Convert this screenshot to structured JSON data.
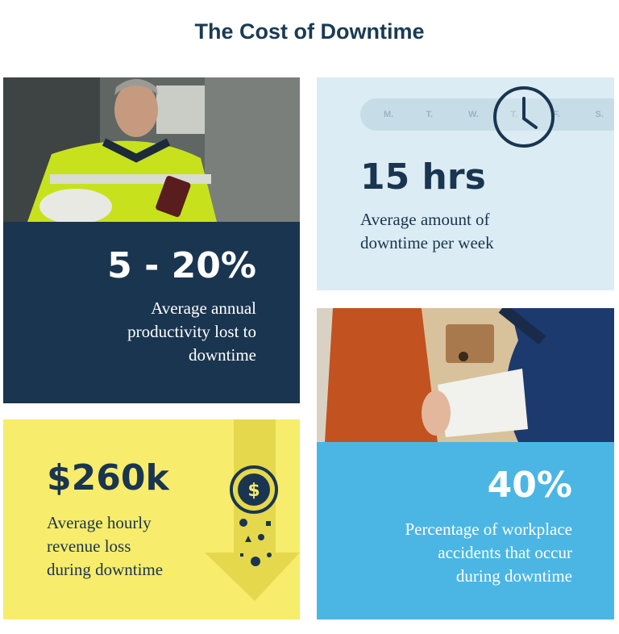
{
  "title": "The Cost of Downtime",
  "cards": [
    {
      "stat": "5 - 20%",
      "description": [
        "Average annual",
        "productivity lost to",
        "downtime"
      ]
    },
    {
      "stat": "15 hrs",
      "description": [
        "Average amount of",
        "downtime per week"
      ],
      "days": [
        "M.",
        "T.",
        "W.",
        "T.",
        "F.",
        "S."
      ]
    },
    {
      "stat": "$260k",
      "description": [
        "Average hourly",
        "revenue loss",
        "during downtime"
      ]
    },
    {
      "stat": "40%",
      "description": [
        "Percentage of workplace",
        "accidents that occur",
        "during downtime"
      ]
    }
  ]
}
